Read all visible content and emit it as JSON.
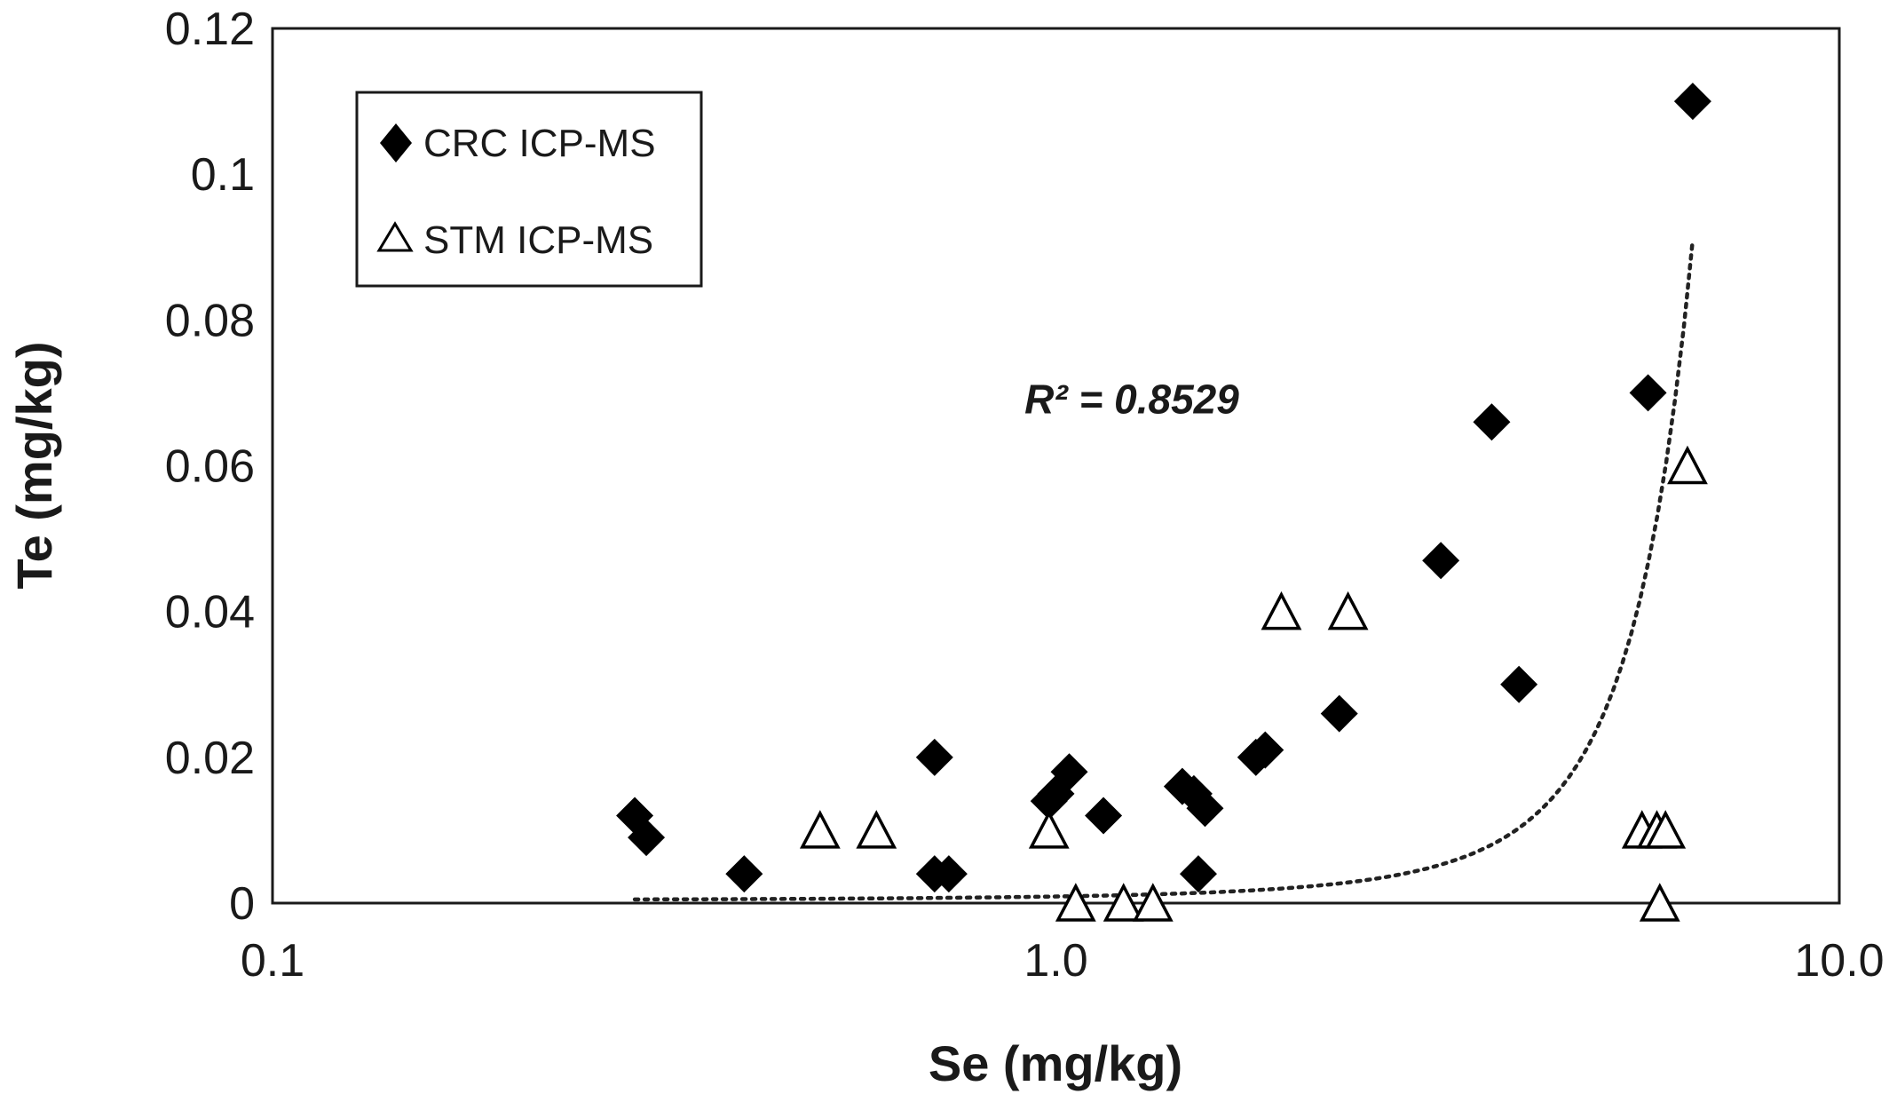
{
  "chart_data": {
    "type": "scatter",
    "title": "",
    "xlabel": "Se (mg/kg)",
    "ylabel": "Te (mg/kg)",
    "x_scale": "log",
    "xlim": [
      0.1,
      10.0
    ],
    "ylim": [
      0,
      0.12
    ],
    "x_ticks": [
      {
        "value": 0.1,
        "label": "0.1"
      },
      {
        "value": 1.0,
        "label": "1.0"
      },
      {
        "value": 10.0,
        "label": "10.0"
      }
    ],
    "y_ticks": [
      {
        "value": 0,
        "label": "0"
      },
      {
        "value": 0.02,
        "label": "0.02"
      },
      {
        "value": 0.04,
        "label": "0.04"
      },
      {
        "value": 0.06,
        "label": "0.06"
      },
      {
        "value": 0.08,
        "label": "0.08"
      },
      {
        "value": 0.1,
        "label": "0.1"
      },
      {
        "value": 0.12,
        "label": "0.12"
      }
    ],
    "grid": false,
    "legend_position": "top-left",
    "series": [
      {
        "name": "CRC ICP-MS",
        "marker": "filled-diamond",
        "color": "#000000",
        "points": [
          {
            "x": 0.29,
            "y": 0.012
          },
          {
            "x": 0.3,
            "y": 0.009
          },
          {
            "x": 0.4,
            "y": 0.004
          },
          {
            "x": 0.7,
            "y": 0.02
          },
          {
            "x": 0.7,
            "y": 0.004
          },
          {
            "x": 0.73,
            "y": 0.004
          },
          {
            "x": 0.98,
            "y": 0.014
          },
          {
            "x": 1.0,
            "y": 0.015
          },
          {
            "x": 1.04,
            "y": 0.018
          },
          {
            "x": 1.15,
            "y": 0.012
          },
          {
            "x": 1.45,
            "y": 0.016
          },
          {
            "x": 1.5,
            "y": 0.015
          },
          {
            "x": 1.55,
            "y": 0.013
          },
          {
            "x": 1.52,
            "y": 0.004
          },
          {
            "x": 1.8,
            "y": 0.02
          },
          {
            "x": 1.85,
            "y": 0.021
          },
          {
            "x": 2.3,
            "y": 0.026
          },
          {
            "x": 3.1,
            "y": 0.047
          },
          {
            "x": 3.6,
            "y": 0.066
          },
          {
            "x": 3.9,
            "y": 0.03
          },
          {
            "x": 5.7,
            "y": 0.07
          },
          {
            "x": 6.5,
            "y": 0.11
          }
        ]
      },
      {
        "name": "STM ICP-MS",
        "marker": "hollow-triangle",
        "color": "#000000",
        "points": [
          {
            "x": 0.5,
            "y": 0.01
          },
          {
            "x": 0.59,
            "y": 0.01
          },
          {
            "x": 0.98,
            "y": 0.01
          },
          {
            "x": 1.06,
            "y": 0.0
          },
          {
            "x": 1.22,
            "y": 0.0
          },
          {
            "x": 1.33,
            "y": 0.0
          },
          {
            "x": 1.94,
            "y": 0.04
          },
          {
            "x": 2.36,
            "y": 0.04
          },
          {
            "x": 5.6,
            "y": 0.01
          },
          {
            "x": 5.85,
            "y": 0.01
          },
          {
            "x": 6.0,
            "y": 0.01
          },
          {
            "x": 5.9,
            "y": 0.0
          },
          {
            "x": 6.4,
            "y": 0.06
          }
        ]
      }
    ],
    "trendline": {
      "style": "dotted",
      "color": "#222222",
      "x_range": [
        0.29,
        6.5
      ],
      "y_start": 0.0005,
      "y_end": 0.091,
      "annotation": "R² = 0.8529",
      "annotation_at": {
        "x": 1.25,
        "y": 0.069
      }
    }
  }
}
